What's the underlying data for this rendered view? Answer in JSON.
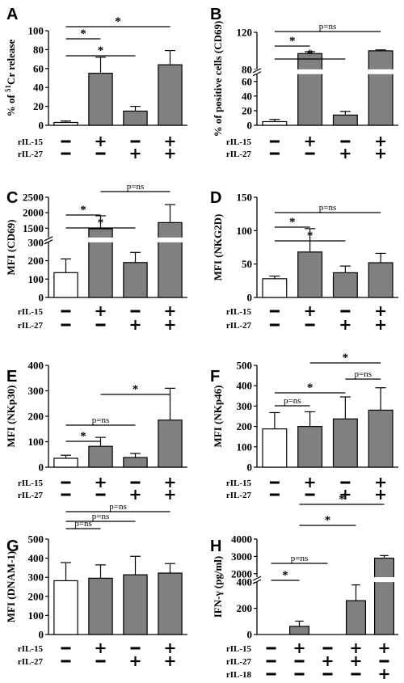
{
  "chart_data": [
    {
      "panel": "A",
      "type": "bar",
      "ylabel_parts": [
        "% of ",
        "51",
        "Cr release"
      ],
      "yticks": [
        "0",
        "20",
        "40",
        "60",
        "80",
        "100"
      ],
      "ylim": [
        0,
        100
      ],
      "row_labels": [
        "rIL-15",
        "rIL-27"
      ],
      "conditions": [
        [
          "−",
          "−"
        ],
        [
          "+",
          "−"
        ],
        [
          "−",
          "+"
        ],
        [
          "+",
          "+"
        ]
      ],
      "bar_colors": [
        "#ffffff",
        "#808080",
        "#808080",
        "#808080"
      ],
      "values": [
        3,
        55,
        15,
        64
      ],
      "errors": [
        1.5,
        17,
        5,
        15
      ],
      "annotations": [
        {
          "from": 0,
          "to": 1,
          "label": "*"
        },
        {
          "from": 0,
          "to": 2,
          "label": "*"
        },
        {
          "from": 0,
          "to": 3,
          "label": "*"
        }
      ]
    },
    {
      "panel": "B",
      "type": "bar",
      "ylabel": "% of positive cells (CD69)",
      "yticks": [
        "0",
        "20",
        "40",
        "60",
        "80",
        "120"
      ],
      "ylim": [
        0,
        120
      ],
      "axis_break": {
        "low": [
          0,
          70
        ],
        "high": [
          80,
          120
        ]
      },
      "row_labels": [
        "rIL-15",
        "rIL-27"
      ],
      "conditions": [
        [
          "−",
          "−"
        ],
        [
          "+",
          "−"
        ],
        [
          "−",
          "+"
        ],
        [
          "+",
          "+"
        ]
      ],
      "bar_colors": [
        "#ffffff",
        "#808080",
        "#808080",
        "#808080"
      ],
      "values": [
        5,
        97,
        14,
        100
      ],
      "errors": [
        3,
        2,
        5,
        1
      ],
      "annotations": [
        {
          "from": 0,
          "to": 1,
          "label": "*"
        },
        {
          "from": 0,
          "to": 2,
          "label": "*"
        },
        {
          "from": 0,
          "to": 3,
          "label": "p=ns"
        }
      ]
    },
    {
      "panel": "C",
      "type": "bar",
      "ylabel": "MFI (CD69)",
      "yticks": [
        "0",
        "100",
        "200",
        "300",
        "1500",
        "2000",
        "2500"
      ],
      "ylim": [
        0,
        2500
      ],
      "axis_break": {
        "low": [
          0,
          300
        ],
        "high": [
          1200,
          2500
        ]
      },
      "row_labels": [
        "rIL-15",
        "rIL-27"
      ],
      "conditions": [
        [
          "−",
          "−"
        ],
        [
          "+",
          "−"
        ],
        [
          "−",
          "+"
        ],
        [
          "+",
          "+"
        ]
      ],
      "bar_colors": [
        "#ffffff",
        "#808080",
        "#808080",
        "#808080"
      ],
      "values": [
        135,
        1480,
        190,
        1680
      ],
      "errors": [
        75,
        420,
        55,
        580
      ],
      "annotations": [
        {
          "from": 0,
          "to": 1,
          "label": "*"
        },
        {
          "from": 0,
          "to": 2,
          "label": "*"
        },
        {
          "from": 1,
          "to": 3,
          "label": "p=ns"
        }
      ]
    },
    {
      "panel": "D",
      "type": "bar",
      "ylabel": "MFI (NKG2D)",
      "yticks": [
        "0",
        "50",
        "100",
        "150"
      ],
      "ylim": [
        0,
        150
      ],
      "row_labels": [
        "rIL-15",
        "rIL-27"
      ],
      "conditions": [
        [
          "−",
          "−"
        ],
        [
          "+",
          "−"
        ],
        [
          "−",
          "+"
        ],
        [
          "+",
          "+"
        ]
      ],
      "bar_colors": [
        "#ffffff",
        "#808080",
        "#808080",
        "#808080"
      ],
      "values": [
        28,
        68,
        37,
        52
      ],
      "errors": [
        4,
        35,
        10,
        14
      ],
      "annotations": [
        {
          "from": 0,
          "to": 1,
          "label": "*"
        },
        {
          "from": 0,
          "to": 2,
          "label": "*"
        },
        {
          "from": 0,
          "to": 3,
          "label": "p=ns"
        }
      ]
    },
    {
      "panel": "E",
      "type": "bar",
      "ylabel": "MFI (NKp30)",
      "yticks": [
        "0",
        "100",
        "200",
        "300",
        "400"
      ],
      "ylim": [
        0,
        400
      ],
      "row_labels": [
        "rIL-15",
        "rIL-27"
      ],
      "conditions": [
        [
          "−",
          "−"
        ],
        [
          "+",
          "−"
        ],
        [
          "−",
          "+"
        ],
        [
          "+",
          "+"
        ]
      ],
      "bar_colors": [
        "#ffffff",
        "#808080",
        "#808080",
        "#808080"
      ],
      "values": [
        35,
        82,
        38,
        185
      ],
      "errors": [
        12,
        35,
        16,
        125
      ],
      "annotations": [
        {
          "from": 0,
          "to": 1,
          "label": "*"
        },
        {
          "from": 0,
          "to": 2,
          "label": "p=ns"
        },
        {
          "from": 1,
          "to": 3,
          "label": "*"
        }
      ]
    },
    {
      "panel": "F",
      "type": "bar",
      "ylabel": "MFI (NKp46)",
      "yticks": [
        "0",
        "100",
        "200",
        "300",
        "400",
        "500"
      ],
      "ylim": [
        0,
        500
      ],
      "row_labels": [
        "rIL-15",
        "rIL-27"
      ],
      "conditions": [
        [
          "−",
          "−"
        ],
        [
          "+",
          "−"
        ],
        [
          "−",
          "+"
        ],
        [
          "+",
          "+"
        ]
      ],
      "bar_colors": [
        "#ffffff",
        "#808080",
        "#808080",
        "#808080"
      ],
      "values": [
        188,
        200,
        237,
        280
      ],
      "errors": [
        80,
        72,
        108,
        110
      ],
      "annotations": [
        {
          "from": 0,
          "to": 1,
          "label": "p=ns"
        },
        {
          "from": 0,
          "to": 2,
          "label": "*"
        },
        {
          "from": 2,
          "to": 3,
          "label": "p=ns"
        },
        {
          "from": 1,
          "to": 3,
          "label": "*"
        }
      ]
    },
    {
      "panel": "G",
      "type": "bar",
      "ylabel": "MFI (DNAM-1)",
      "yticks": [
        "0",
        "100",
        "200",
        "300",
        "400",
        "500"
      ],
      "ylim": [
        0,
        500
      ],
      "row_labels": [
        "rIL-15",
        "rIL-27"
      ],
      "conditions": [
        [
          "−",
          "−"
        ],
        [
          "+",
          "−"
        ],
        [
          "−",
          "+"
        ],
        [
          "+",
          "+"
        ]
      ],
      "bar_colors": [
        "#ffffff",
        "#808080",
        "#808080",
        "#808080"
      ],
      "values": [
        282,
        295,
        313,
        322
      ],
      "errors": [
        95,
        70,
        97,
        50
      ],
      "annotations": [
        {
          "from": 0,
          "to": 1,
          "label": "p=ns"
        },
        {
          "from": 0,
          "to": 2,
          "label": "p=ns"
        },
        {
          "from": 0,
          "to": 3,
          "label": "p=ns"
        }
      ]
    },
    {
      "panel": "H",
      "type": "bar",
      "ylabel": "IFN-γ (pg/ml)",
      "yticks": [
        "0",
        "200",
        "400",
        "2000",
        "3000",
        "4000"
      ],
      "ylim": [
        0,
        4000
      ],
      "axis_break": {
        "low": [
          0,
          400
        ],
        "high": [
          1800,
          4000
        ]
      },
      "row_labels": [
        "rIL-15",
        "rIL-27",
        "rIL-18"
      ],
      "conditions": [
        [
          "−",
          "−",
          "−"
        ],
        [
          "+",
          "−",
          "−"
        ],
        [
          "−",
          "+",
          "−"
        ],
        [
          "+",
          "+",
          "−"
        ],
        [
          "+",
          "−",
          "+"
        ]
      ],
      "bar_colors": [
        "#ffffff",
        "#808080",
        "#808080",
        "#808080",
        "#808080"
      ],
      "values": [
        0,
        62,
        0,
        258,
        2900
      ],
      "errors": [
        0,
        40,
        0,
        120,
        150
      ],
      "annotations": [
        {
          "from": 0,
          "to": 1,
          "label": "*"
        },
        {
          "from": 0,
          "to": 2,
          "label": "p=ns"
        },
        {
          "from": 1,
          "to": 3,
          "label": "*"
        },
        {
          "from": 1,
          "to": 4,
          "label": "*"
        }
      ]
    }
  ]
}
